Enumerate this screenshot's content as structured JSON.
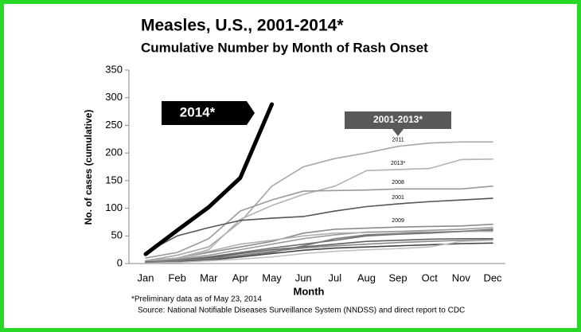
{
  "chart_data": {
    "type": "line",
    "title": "Measles, U.S., 2001-2014*",
    "subtitle": "Cumulative Number by Month of Rash Onset",
    "x_label": "Month",
    "y_label": "No. of cases (cumulative)",
    "categories": [
      "Jan",
      "Feb",
      "Mar",
      "Apr",
      "May",
      "Jun",
      "Jul",
      "Aug",
      "Sep",
      "Oct",
      "Nov",
      "Dec"
    ],
    "ylim": [
      0,
      350
    ],
    "yticks": [
      0,
      50,
      100,
      150,
      200,
      250,
      300,
      350
    ],
    "annotations": [
      "2014*",
      "2001-2013*"
    ],
    "footnotes": [
      "*Preliminary data as of May 23, 2014",
      "Source:  National Notifiable Diseases Surveillance System (NNDSS)  and direct report to CDC"
    ],
    "series": [
      {
        "name": "2011",
        "color": "#a6a6a6",
        "values": [
          5,
          15,
          30,
          75,
          140,
          175,
          190,
          200,
          212,
          218,
          220,
          220
        ]
      },
      {
        "name": "2013*",
        "color": "#b3b3b3",
        "values": [
          5,
          10,
          25,
          80,
          105,
          125,
          140,
          168,
          170,
          172,
          188,
          189
        ]
      },
      {
        "name": "2008",
        "color": "#999999",
        "values": [
          10,
          20,
          45,
          95,
          115,
          131,
          132,
          133,
          135,
          135,
          135,
          140
        ]
      },
      {
        "name": "2001",
        "color": "#555555",
        "values": [
          20,
          50,
          65,
          78,
          82,
          85,
          95,
          103,
          108,
          112,
          115,
          118
        ]
      },
      {
        "name": "2009",
        "color": "#8c8c8c",
        "values": [
          5,
          10,
          20,
          30,
          40,
          55,
          62,
          64,
          66,
          67,
          68,
          71
        ]
      },
      {
        "color": "#9a9a9a",
        "values": [
          3,
          8,
          15,
          25,
          35,
          45,
          52,
          57,
          58,
          60,
          62,
          65
        ]
      },
      {
        "color": "#707070",
        "values": [
          2,
          6,
          12,
          20,
          28,
          35,
          42,
          50,
          53,
          55,
          58,
          60
        ]
      },
      {
        "color": "#b0b0b0",
        "values": [
          4,
          10,
          22,
          35,
          42,
          50,
          55,
          56,
          57,
          57,
          58,
          58
        ]
      },
      {
        "color": "#606060",
        "values": [
          3,
          5,
          10,
          18,
          25,
          30,
          35,
          40,
          42,
          44,
          45,
          45
        ]
      },
      {
        "color": "#8a8a8a",
        "values": [
          2,
          4,
          8,
          15,
          22,
          28,
          32,
          35,
          38,
          40,
          42,
          43
        ]
      },
      {
        "color": "#444444",
        "values": [
          1,
          3,
          6,
          12,
          18,
          24,
          28,
          30,
          32,
          34,
          36,
          37
        ]
      },
      {
        "color": "#c0c0c0",
        "values": [
          1,
          2,
          5,
          8,
          12,
          18,
          22,
          25,
          27,
          30,
          40,
          42
        ]
      },
      {
        "color": "#7a7a7a",
        "values": [
          2,
          5,
          9,
          14,
          20,
          32,
          45,
          52,
          54,
          56,
          58,
          62
        ]
      },
      {
        "name": "2014",
        "color": "#000000",
        "width": 5,
        "values": [
          17,
          60,
          102,
          155,
          288,
          null,
          null,
          null,
          null,
          null,
          null,
          null
        ]
      }
    ]
  }
}
